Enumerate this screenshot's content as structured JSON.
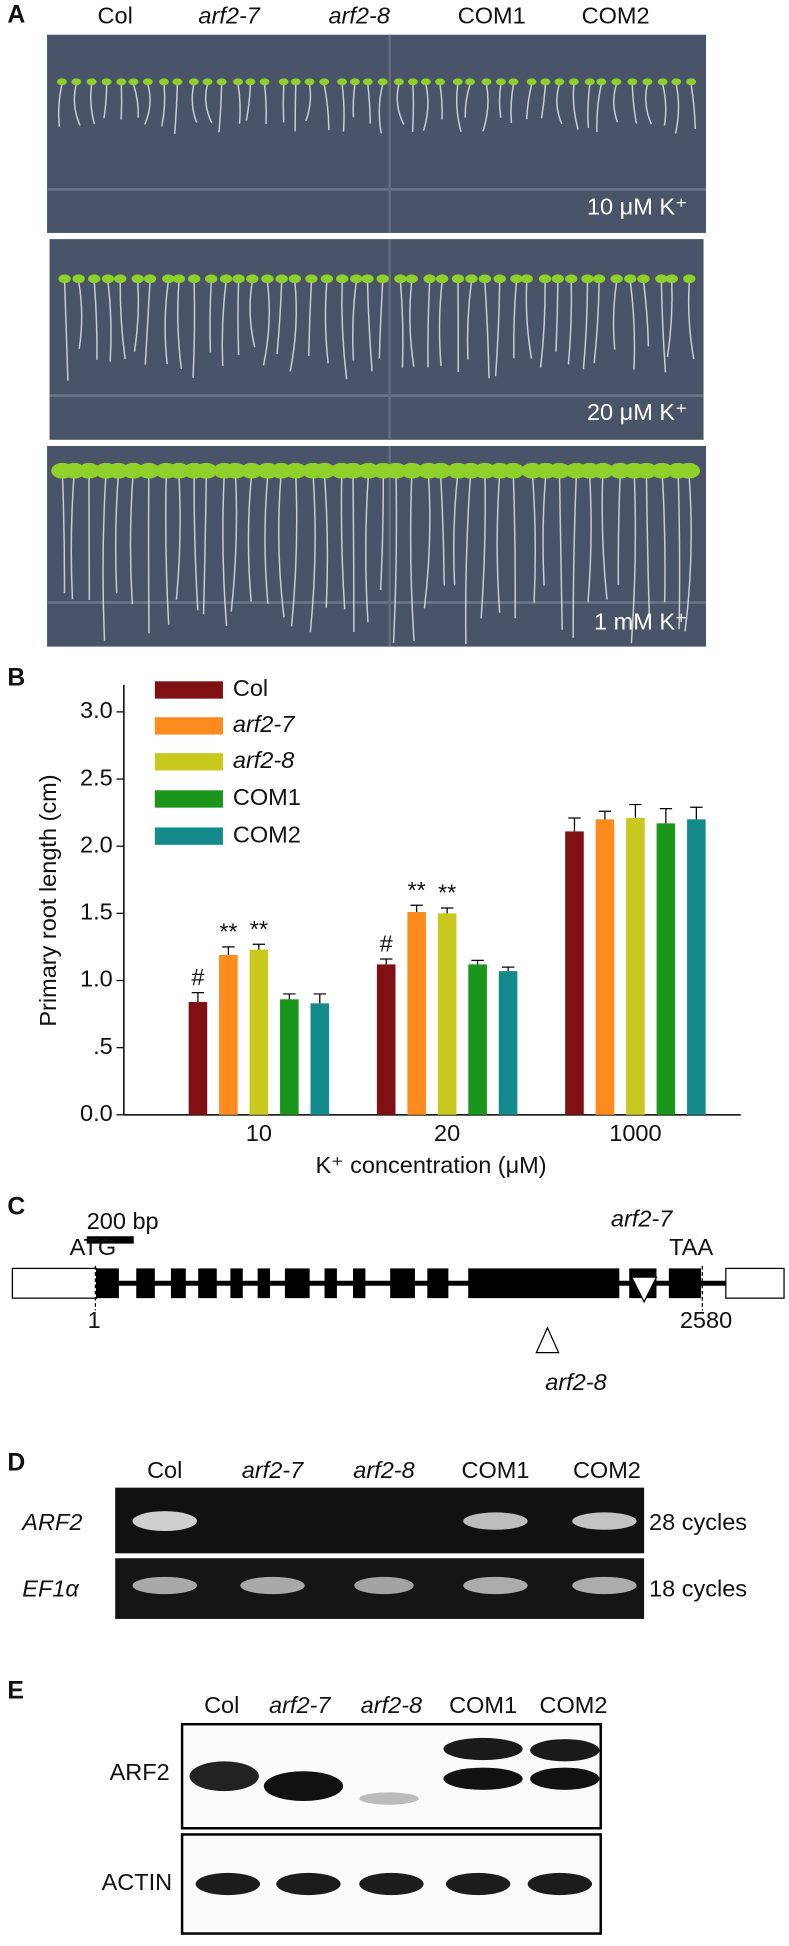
{
  "panels": {
    "a": {
      "label": "A",
      "lanes": [
        "Col",
        "arf2-7",
        "arf2-8",
        "COM1",
        "COM2"
      ],
      "conditions": [
        "10 μM K⁺",
        "20 μM K⁺",
        "1 mM K⁺"
      ]
    },
    "c": {
      "label": "C",
      "scale": "200 bp",
      "start_codon": "ATG",
      "start_position": "1",
      "stop_codon": "TAA",
      "end_position": "2580",
      "insertions": [
        "arf2-7",
        "arf2-8"
      ]
    },
    "d": {
      "label": "D",
      "lanes": [
        "Col",
        "arf2-7",
        "arf2-8",
        "COM1",
        "COM2"
      ],
      "genes": [
        "ARF2",
        "EF1α"
      ],
      "cycles": [
        "28 cycles",
        "18 cycles"
      ]
    },
    "e": {
      "label": "E",
      "lanes": [
        "Col",
        "arf2-7",
        "arf2-8",
        "COM1",
        "COM2"
      ],
      "proteins": [
        "ARF2",
        "ACTIN"
      ]
    }
  },
  "chart_data": {
    "type": "bar",
    "panel_label": "B",
    "x_label": "K⁺ concentration (μM)",
    "y_label": "Primary root length (cm)",
    "categories": [
      "10",
      "20",
      "1000"
    ],
    "series": [
      {
        "name": "Col",
        "color": "#7f1014",
        "values": [
          0.84,
          1.12,
          2.11
        ],
        "errors": [
          0.07,
          0.04,
          0.1
        ]
      },
      {
        "name": "arf2-7",
        "color": "#ff8a1e",
        "values": [
          1.19,
          1.51,
          2.2
        ],
        "errors": [
          0.06,
          0.05,
          0.06
        ]
      },
      {
        "name": "arf2-8",
        "color": "#c9c81f",
        "values": [
          1.23,
          1.5,
          2.21
        ],
        "errors": [
          0.04,
          0.04,
          0.1
        ]
      },
      {
        "name": "COM1",
        "color": "#1a961a",
        "values": [
          0.86,
          1.12,
          2.17
        ],
        "errors": [
          0.04,
          0.03,
          0.11
        ]
      },
      {
        "name": "COM2",
        "color": "#148a8c",
        "values": [
          0.83,
          1.07,
          2.2
        ],
        "errors": [
          0.07,
          0.03,
          0.09
        ]
      }
    ],
    "annotations": [
      {
        "text": "#",
        "series": 0,
        "category": 0
      },
      {
        "text": "**",
        "series": 1,
        "category": 0
      },
      {
        "text": "**",
        "series": 2,
        "category": 0
      },
      {
        "text": "#",
        "series": 0,
        "category": 1
      },
      {
        "text": "**",
        "series": 1,
        "category": 1
      },
      {
        "text": "**",
        "series": 2,
        "category": 1
      }
    ],
    "ylim": [
      0,
      3.2
    ],
    "yticks": [
      {
        "value": 0,
        "label": "0.0"
      },
      {
        "value": 0.5,
        "label": ".5"
      },
      {
        "value": 1,
        "label": "1.0"
      },
      {
        "value": 1.5,
        "label": "1.5"
      },
      {
        "value": 2,
        "label": "2.0"
      },
      {
        "value": 2.5,
        "label": "2.5"
      },
      {
        "value": 3,
        "label": "3.0"
      }
    ],
    "legend": "upper left"
  }
}
